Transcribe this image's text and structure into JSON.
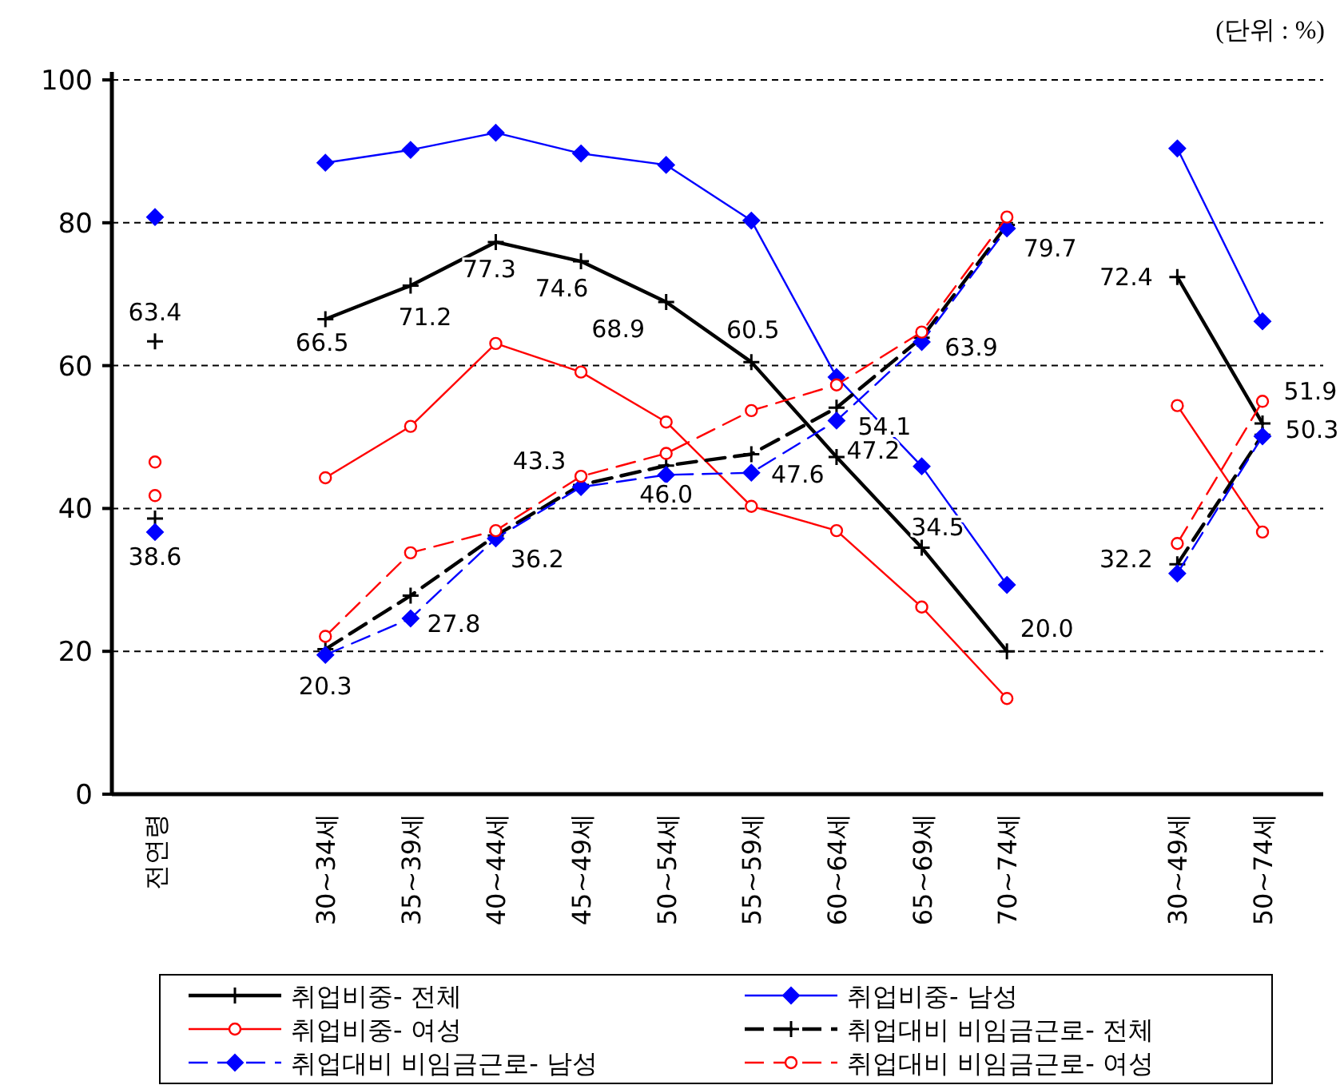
{
  "chart_data": {
    "type": "line",
    "categories": [
      "전연령",
      null,
      "30~34세",
      "35~39세",
      "40~44세",
      "45~49세",
      "50~54세",
      "55~59세",
      "60~64세",
      "65~69세",
      "70~74세",
      null,
      "30~49세",
      "50~74세"
    ],
    "series": [
      {
        "name": "취업비중- 전체",
        "color": "#000000",
        "line_style": "solid",
        "marker": "cross",
        "values": [
          63.4,
          null,
          66.5,
          71.2,
          77.3,
          74.6,
          68.9,
          60.5,
          47.2,
          34.5,
          20.0,
          null,
          72.4,
          51.9
        ],
        "value_labels": [
          "63.4",
          null,
          "66.5",
          "71.2",
          "77.3",
          "74.6",
          "68.9",
          "60.5",
          "47.2",
          "34.5",
          "20.0",
          null,
          "72.4",
          "51.9"
        ]
      },
      {
        "name": "취업비중- 남성",
        "color": "#0000ff",
        "line_style": "solid",
        "marker": "diamond",
        "values": [
          80.8,
          null,
          88.4,
          90.2,
          92.6,
          89.7,
          88.1,
          80.3,
          58.4,
          45.9,
          29.3,
          null,
          90.4,
          66.2
        ]
      },
      {
        "name": "취업비중- 여성",
        "color": "#ff0000",
        "line_style": "solid",
        "marker": "circle",
        "values": [
          46.5,
          null,
          44.3,
          51.5,
          63.1,
          59.1,
          52.1,
          40.3,
          36.9,
          26.2,
          13.4,
          null,
          54.4,
          36.7
        ]
      },
      {
        "name": "취업대비 비임금근로- 전체",
        "color": "#000000",
        "line_style": "dashed",
        "marker": "cross",
        "values": [
          38.6,
          null,
          20.3,
          27.8,
          36.2,
          43.3,
          46.0,
          47.6,
          54.1,
          63.9,
          79.7,
          null,
          32.2,
          50.3
        ],
        "value_labels": [
          "38.6",
          null,
          "20.3",
          "27.8",
          "36.2",
          "43.3",
          "46.0",
          "47.6",
          "54.1",
          "63.9",
          "79.7",
          null,
          "32.2",
          "50.3"
        ]
      },
      {
        "name": "취업대비 비임금근로- 남성",
        "color": "#0000ff",
        "line_style": "dashed",
        "marker": "diamond",
        "values": [
          36.7,
          null,
          19.5,
          24.6,
          35.8,
          43.0,
          44.7,
          45.0,
          52.3,
          63.3,
          79.2,
          null,
          30.9,
          50.1
        ]
      },
      {
        "name": "취업대비 비임금근로- 여성",
        "color": "#ff0000",
        "line_style": "dashed",
        "marker": "circle",
        "values": [
          41.8,
          null,
          22.1,
          33.8,
          36.9,
          44.5,
          47.7,
          53.7,
          57.3,
          64.7,
          80.8,
          null,
          35.1,
          55.0
        ]
      }
    ],
    "ylim": [
      0,
      100
    ],
    "yticks": [
      0,
      20,
      40,
      60,
      80,
      100
    ],
    "grid": "y",
    "legend": "bottom",
    "annotations": [
      "(단위 : %)"
    ]
  }
}
